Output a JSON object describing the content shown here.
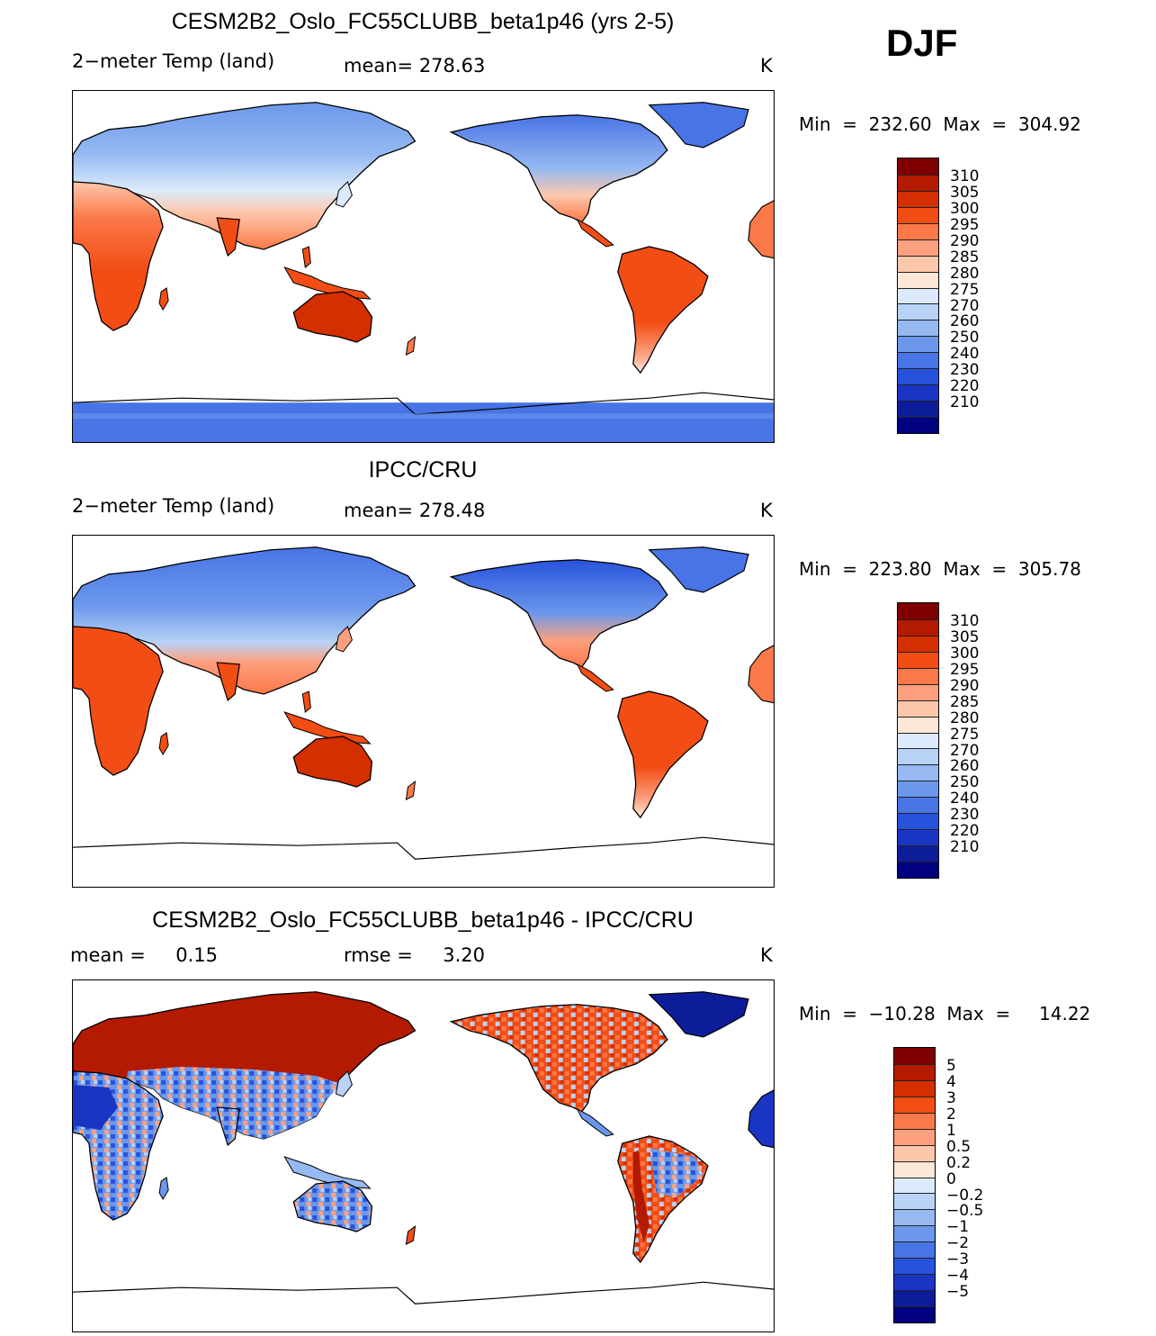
{
  "season": "DJF",
  "panels": [
    {
      "title": "CESM2B2_Oslo_FC55CLUBB_beta1p46 (yrs 2-5)",
      "left_label": "2−meter Temp (land)",
      "center_label": "mean= 278.63",
      "units": "K",
      "minmax": "Min  =  232.60  Max  =  304.92",
      "colorbar_labels": [
        "310",
        "305",
        "300",
        "295",
        "290",
        "285",
        "280",
        "275",
        "270",
        "260",
        "250",
        "240",
        "230",
        "220",
        "210"
      ],
      "colors": [
        "#800000",
        "#b31a00",
        "#d42f00",
        "#f24d14",
        "#fb7848",
        "#fca07f",
        "#fdc7ac",
        "#fde7d6",
        "#dcebfb",
        "#b9d3f7",
        "#96b9f2",
        "#6b98eb",
        "#4874e6",
        "#2753dc",
        "#1a35c4",
        "#0d1d9a",
        "#000080"
      ]
    },
    {
      "title": "IPCC/CRU",
      "left_label": "2−meter Temp (land)",
      "center_label": "mean= 278.48",
      "units": "K",
      "minmax": "Min  =  223.80  Max  =  305.78",
      "colorbar_labels": [
        "310",
        "305",
        "300",
        "295",
        "290",
        "285",
        "280",
        "275",
        "270",
        "260",
        "250",
        "240",
        "230",
        "220",
        "210"
      ],
      "colors": [
        "#800000",
        "#b31a00",
        "#d42f00",
        "#f24d14",
        "#fb7848",
        "#fca07f",
        "#fdc7ac",
        "#fde7d6",
        "#dcebfb",
        "#b9d3f7",
        "#96b9f2",
        "#6b98eb",
        "#4874e6",
        "#2753dc",
        "#1a35c4",
        "#0d1d9a",
        "#000080"
      ]
    },
    {
      "title": "CESM2B2_Oslo_FC55CLUBB_beta1p46 - IPCC/CRU",
      "left_label": "mean =     0.15",
      "center_label": "rmse =     3.20",
      "units": "K",
      "minmax": "Min  =  −10.28  Max  =     14.22",
      "colorbar_labels": [
        "5",
        "4",
        "3",
        "2",
        "1",
        "0.5",
        "0.2",
        "0",
        "−0.2",
        "−0.5",
        "−1",
        "−2",
        "−3",
        "−4",
        "−5"
      ],
      "colors": [
        "#800000",
        "#b31a00",
        "#d42f00",
        "#f24d14",
        "#fb7848",
        "#fca07f",
        "#fdc7ac",
        "#fde7d6",
        "#dcebfb",
        "#b9d3f7",
        "#96b9f2",
        "#6b98eb",
        "#4874e6",
        "#2753dc",
        "#1a35c4",
        "#0d1d9a",
        "#000080"
      ]
    }
  ]
}
